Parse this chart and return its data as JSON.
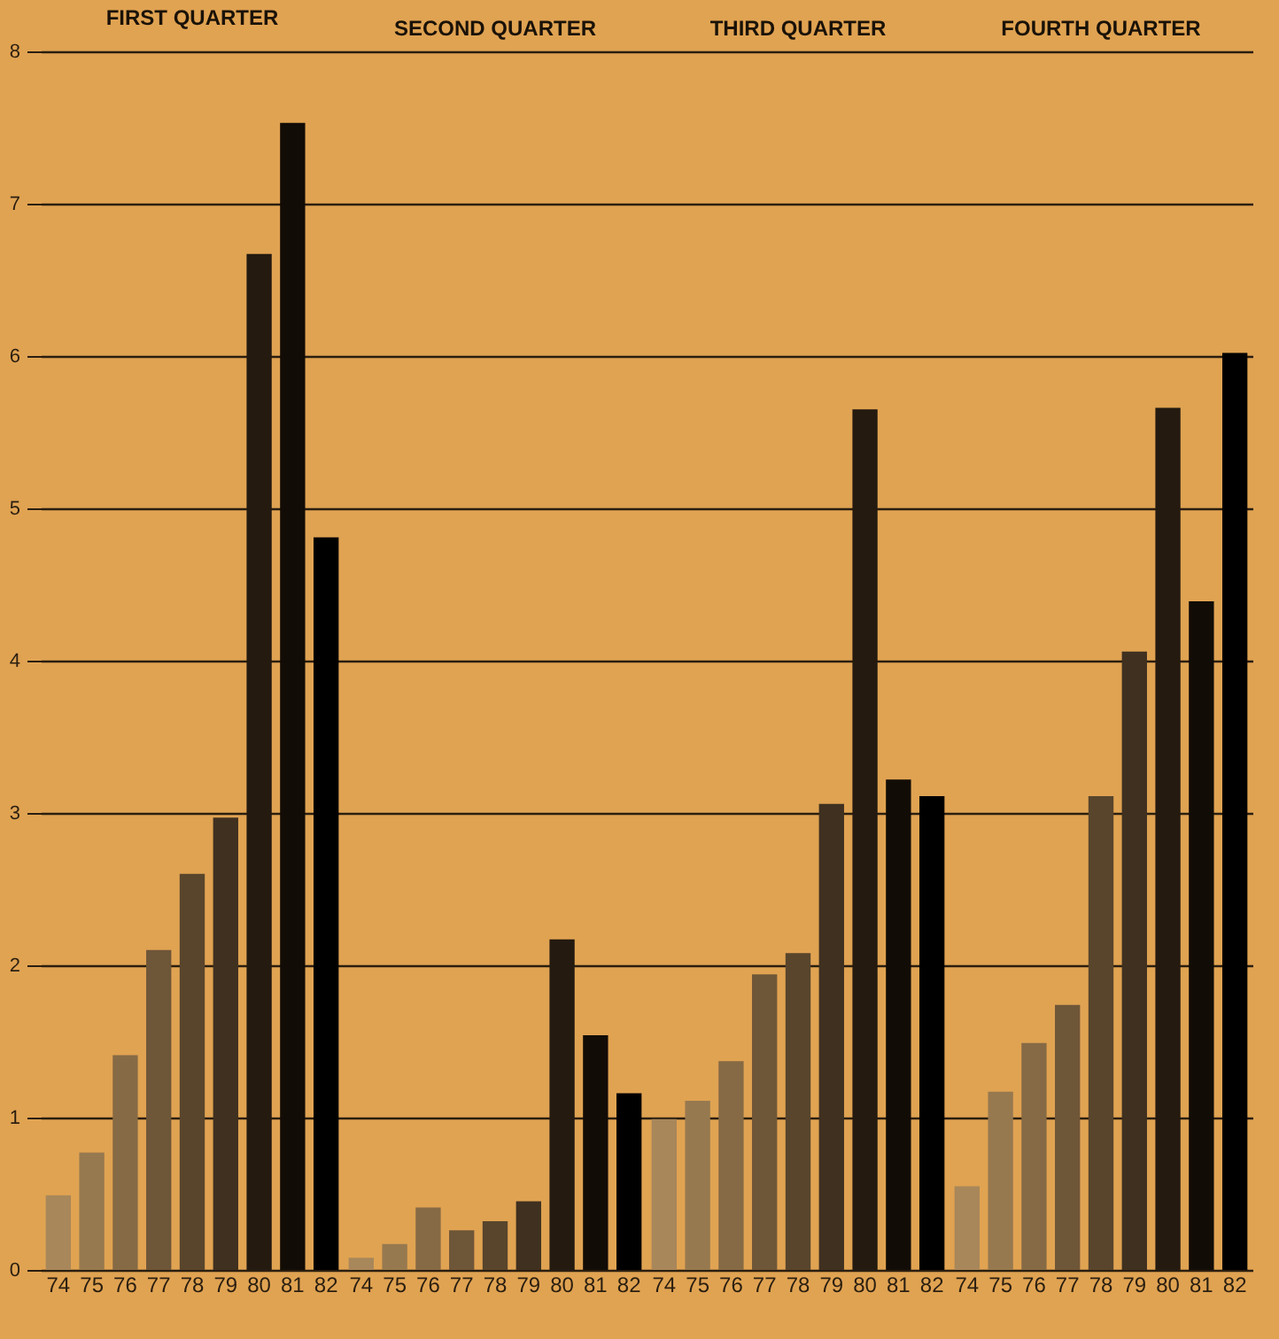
{
  "chart_data": [
    {
      "type": "bar",
      "title": "FIRST QUARTER",
      "categories": [
        "74",
        "75",
        "76",
        "77",
        "78",
        "79",
        "80",
        "81",
        "82"
      ],
      "values": [
        0.49,
        0.77,
        1.41,
        2.1,
        2.6,
        2.97,
        6.67,
        7.53,
        4.81
      ],
      "colors": [
        "#a8875a",
        "#97794f",
        "#866a45",
        "#6e5638",
        "#58452c",
        "#3f3020",
        "#241a10",
        "#120c06",
        "#000000"
      ],
      "ylim": [
        0,
        8
      ],
      "yticks": [
        0,
        1,
        2,
        3,
        4,
        5,
        6,
        7,
        8
      ],
      "grid": "y"
    },
    {
      "type": "bar",
      "title": "SECOND QUARTER",
      "categories": [
        "74",
        "75",
        "76",
        "77",
        "78",
        "79",
        "80",
        "81",
        "82"
      ],
      "values": [
        0.08,
        0.17,
        0.41,
        0.26,
        0.32,
        0.45,
        2.17,
        1.54,
        1.16
      ],
      "colors": [
        "#a8875a",
        "#97794f",
        "#866a45",
        "#6e5638",
        "#58452c",
        "#3f3020",
        "#241a10",
        "#120c06",
        "#000000"
      ],
      "ylim": [
        0,
        8
      ],
      "yticks": [
        0,
        1,
        2,
        3,
        4,
        5,
        6,
        7,
        8
      ],
      "grid": "y",
      "tick_labels": "x"
    },
    {
      "type": "bar",
      "title": "THIRD QUARTER",
      "categories": [
        "74",
        "75",
        "76",
        "77",
        "78",
        "79",
        "80",
        "81",
        "82"
      ],
      "values": [
        0.99,
        1.11,
        1.37,
        1.94,
        2.08,
        3.06,
        5.65,
        3.22,
        3.11
      ],
      "colors": [
        "#a8875a",
        "#97794f",
        "#866a45",
        "#6e5638",
        "#58452c",
        "#3f3020",
        "#241a10",
        "#120c06",
        "#000000"
      ],
      "ylim": [
        0,
        8
      ],
      "yticks": [
        0,
        1,
        2,
        3,
        4,
        5,
        6,
        7,
        8
      ],
      "grid": "y",
      "tick_labels": "x"
    },
    {
      "type": "bar",
      "title": "FOURTH QUARTER",
      "categories": [
        "74",
        "75",
        "76",
        "77",
        "78",
        "79",
        "80",
        "81",
        "82"
      ],
      "values": [
        0.55,
        1.17,
        1.49,
        1.74,
        3.11,
        4.06,
        5.66,
        4.39,
        6.02
      ],
      "colors": [
        "#a8875a",
        "#97794f",
        "#866a45",
        "#6e5638",
        "#58452c",
        "#3f3020",
        "#241a10",
        "#120c06",
        "#000000"
      ],
      "ylim": [
        0,
        8
      ],
      "yticks": [
        0,
        1,
        2,
        3,
        4,
        5,
        6,
        7,
        8
      ],
      "grid": "y",
      "tick_labels": "x"
    }
  ]
}
